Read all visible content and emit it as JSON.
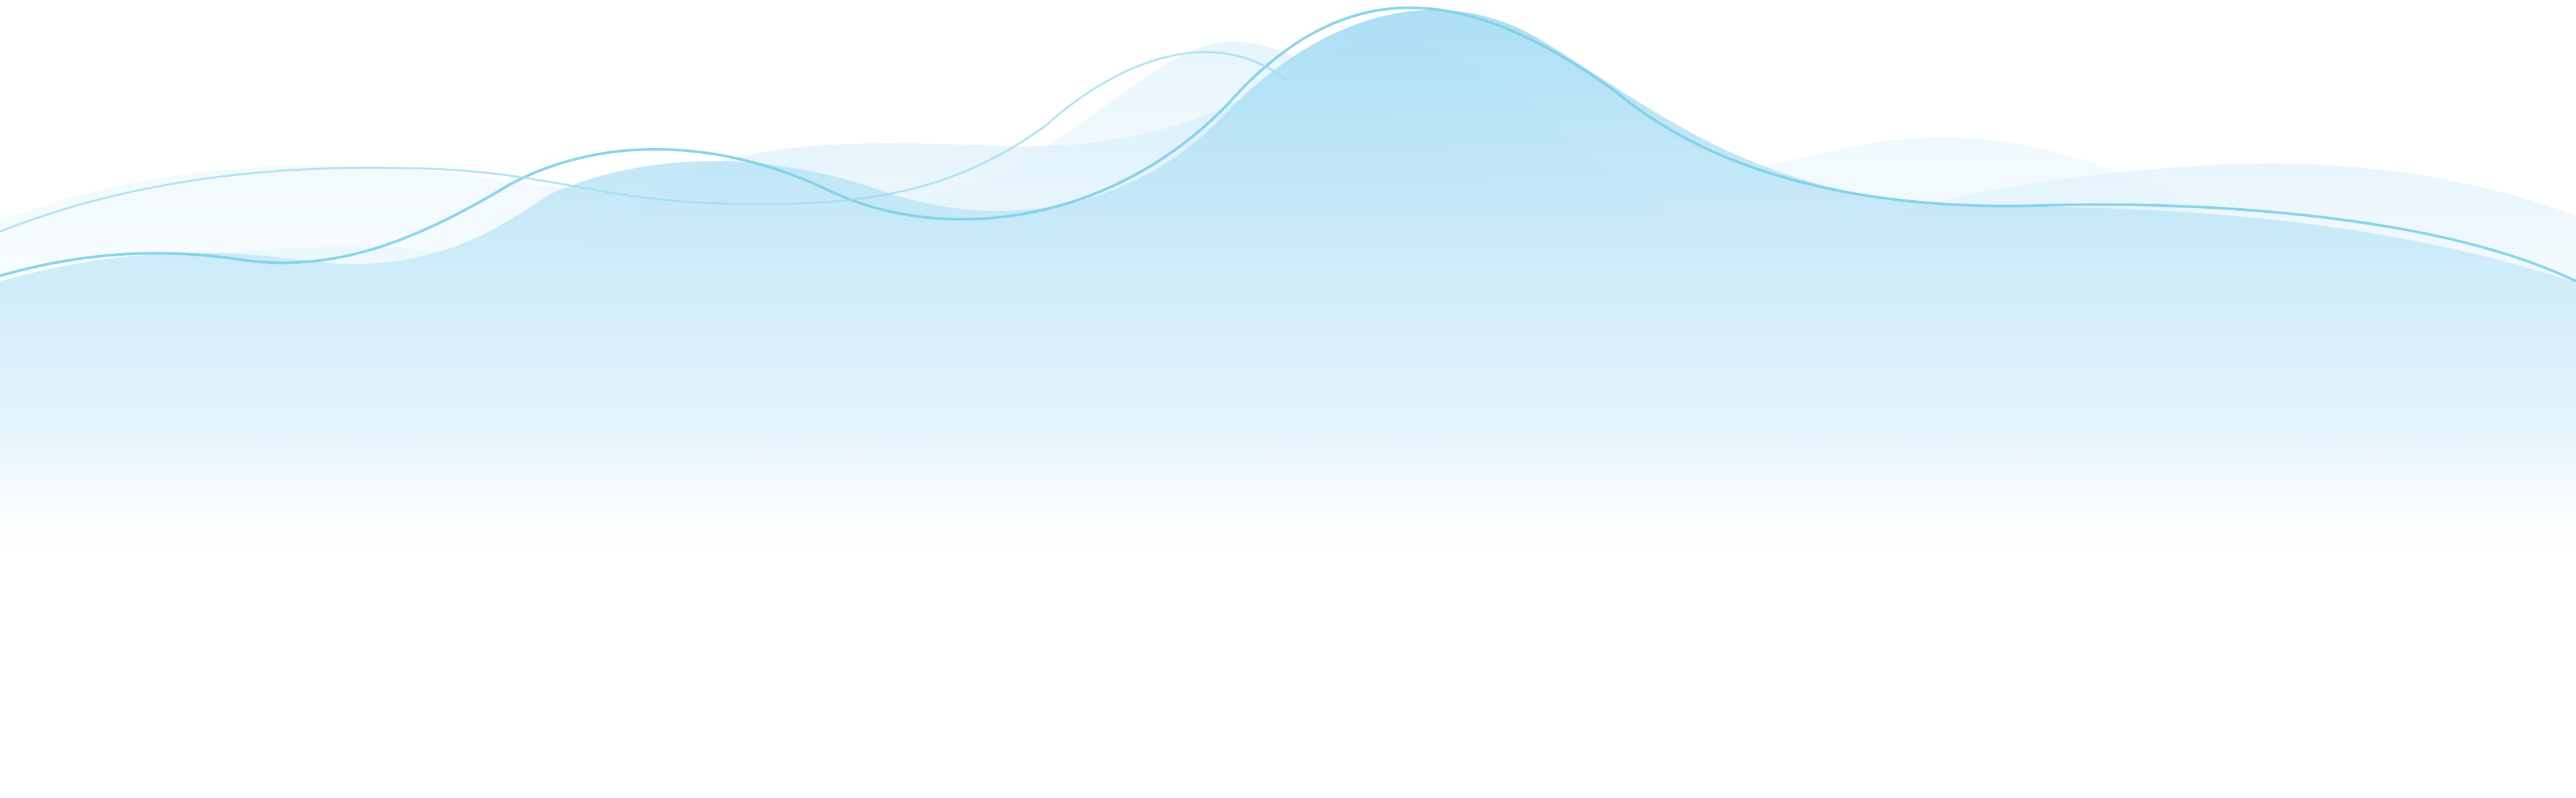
{
  "canvas": {
    "background": "#ffffff"
  },
  "colors": {
    "wave_fill_top": "#a8ddf4",
    "wave_fill_light": "#d7eefa",
    "wave_fill_pale": "#e6f5fc",
    "outline_stroke": "#7dcfe7",
    "outline_stroke_soft": "#9fdcee"
  }
}
